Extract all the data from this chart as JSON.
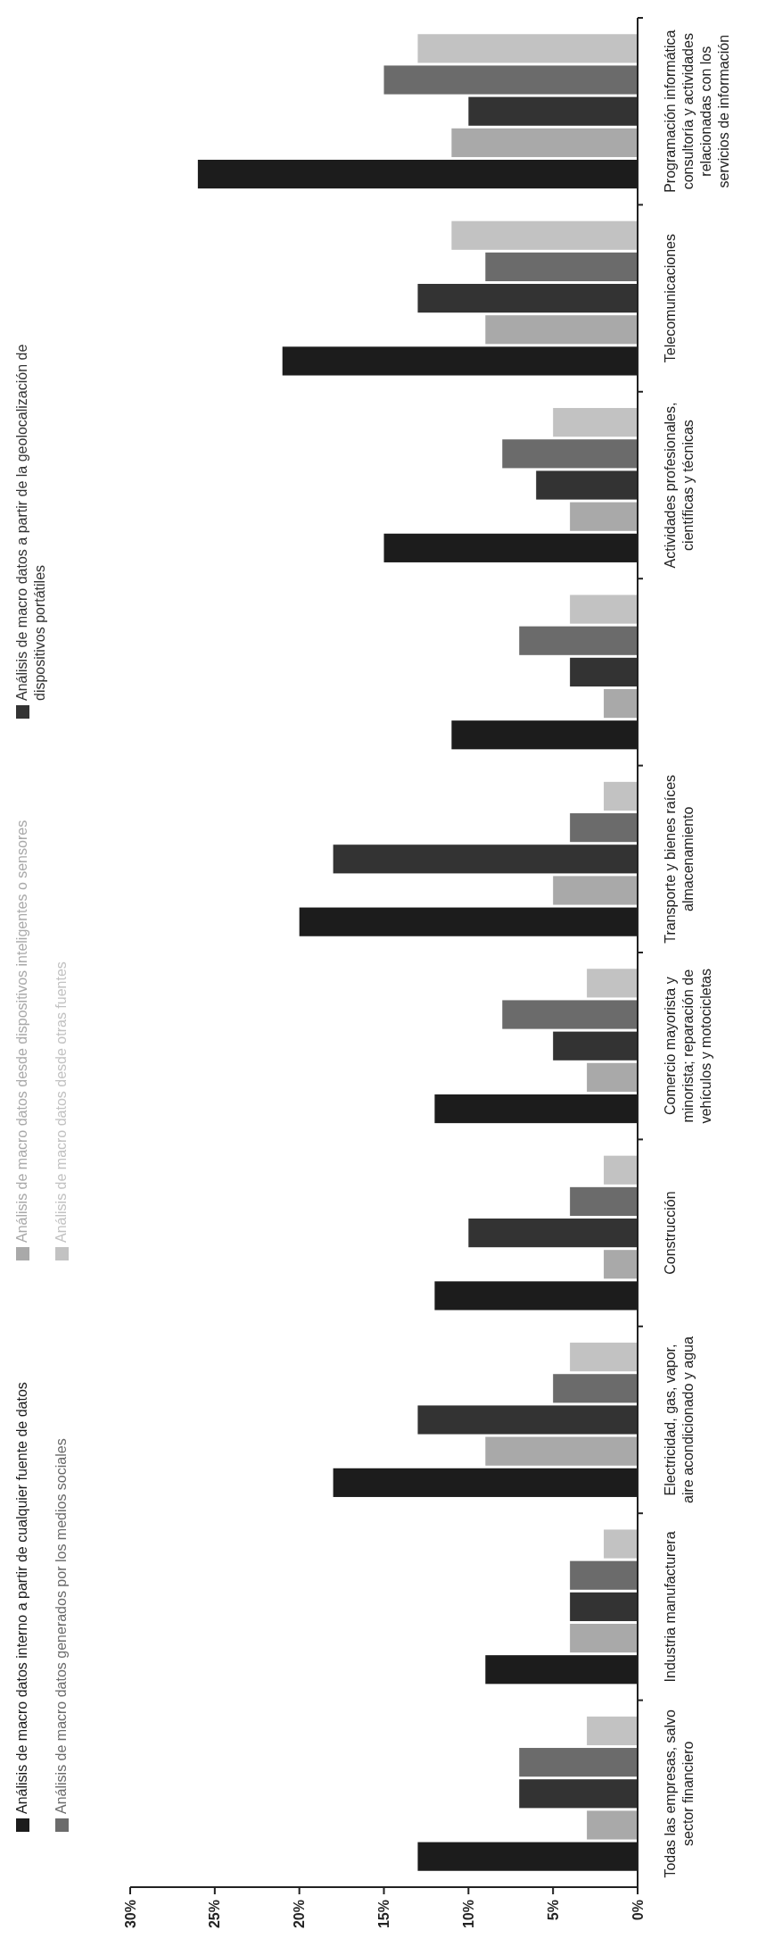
{
  "chart_data": {
    "type": "bar",
    "orientation": "horizontal",
    "categories": [
      "Programación informática consultoría y actividades relacionadas con los servicios de información",
      "Telecomunicaciones",
      "Actividades profesionales, científicas y técnicas",
      null,
      "Transporte y bienes raíces almacenamiento",
      "Comercio mayorista y minorista; reparación de vehículos y motocicletas",
      "Construcción",
      "Electricidad, gas, vapor, aire acondicionado y agua",
      "Industria manufacturera",
      "Todas las empresas, salvo sector financiero"
    ],
    "series": [
      {
        "name": "Análisis de macro datos  interno a partir de cualquier fuente de datos",
        "color": "#1c1c1c",
        "values": [
          26,
          21,
          15,
          11,
          20,
          12,
          12,
          18,
          9,
          13
        ]
      },
      {
        "name": "Análisis de macro datos desde dispositivos inteligentes o sensores",
        "color": "#a9a9a9",
        "values": [
          11,
          9,
          4,
          2,
          5,
          3,
          2,
          9,
          4,
          3
        ]
      },
      {
        "name": "Análisis de macro datos a partir de la geolocalización de dispositivos portátiles",
        "color": "#333333",
        "values": [
          10,
          13,
          6,
          4,
          18,
          5,
          10,
          13,
          4,
          7
        ]
      },
      {
        "name": "Análisis de macro datos generados por los medios sociales",
        "color": "#6b6b6b",
        "values": [
          15,
          9,
          8,
          7,
          4,
          8,
          4,
          5,
          4,
          7
        ]
      },
      {
        "name": "Análisis de macro datos desde otras fuentes",
        "color": "#c2c2c2",
        "values": [
          13,
          11,
          5,
          4,
          2,
          3,
          2,
          4,
          2,
          3
        ]
      }
    ],
    "xlim": [
      30,
      0
    ],
    "xticks": [
      {
        "value": 30,
        "label": "30%"
      },
      {
        "value": 25,
        "label": "25%"
      },
      {
        "value": 20,
        "label": "20%"
      },
      {
        "value": 15,
        "label": "15%"
      },
      {
        "value": 10,
        "label": "10%"
      },
      {
        "value": 5,
        "label": "5%"
      },
      {
        "value": 0,
        "label": "0%"
      }
    ],
    "legend": "left",
    "grid": false
  }
}
